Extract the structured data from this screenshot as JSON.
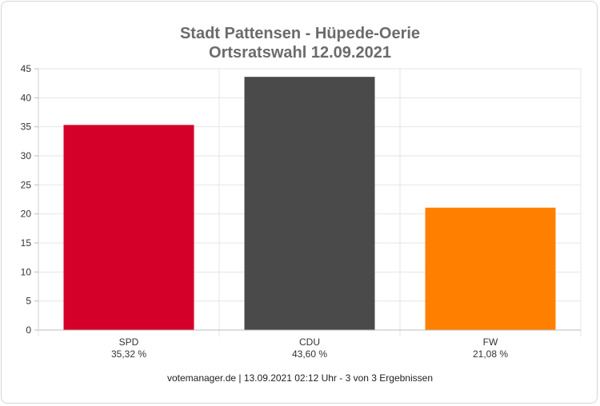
{
  "chart_data": {
    "type": "bar",
    "title": "Stadt Pattensen - Hüpede-Oerie",
    "subtitle": "Ortsratswahl 12.09.2021",
    "categories": [
      "SPD",
      "CDU",
      "FW"
    ],
    "value_labels": [
      "35,32 %",
      "43,60 %",
      "21,08 %"
    ],
    "values": [
      35.32,
      43.6,
      21.08
    ],
    "colors": [
      "#d50029",
      "#4a4a4a",
      "#ff8000"
    ],
    "ylim": [
      0,
      45
    ],
    "yticks": [
      "0",
      "5",
      "10",
      "15",
      "20",
      "25",
      "30",
      "35",
      "40",
      "45"
    ],
    "grid": true,
    "xlabel": "",
    "ylabel": ""
  },
  "footer": "votemanager.de | 13.09.2021 02:12 Uhr - 3 von 3 Ergebnissen"
}
